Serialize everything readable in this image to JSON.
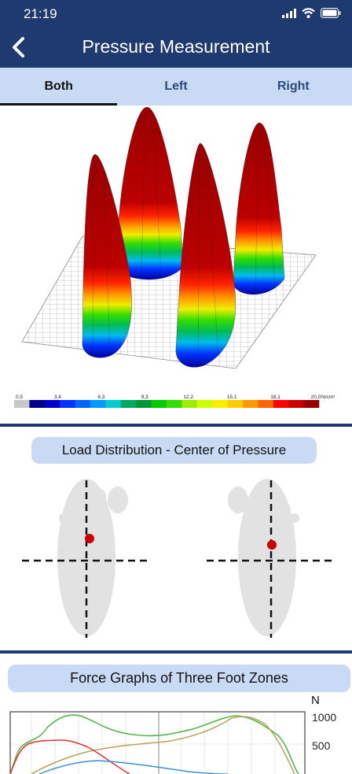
{
  "status": {
    "time": "21:19",
    "icons": [
      "signal-icon",
      "wifi-icon",
      "battery-icon"
    ]
  },
  "header": {
    "title": "Pressure Measurement",
    "back_icon": "chevron-left-icon"
  },
  "tabs": [
    {
      "label": "Both",
      "active": true
    },
    {
      "label": "Left",
      "active": false
    },
    {
      "label": "Right",
      "active": false
    }
  ],
  "pressure_scale": {
    "ticks": [
      "0,5",
      "3,4",
      "6,3",
      "9,3",
      "12,2",
      "15,1",
      "18,1",
      "20,0"
    ],
    "unit": "N/cm²",
    "colors": [
      "#c8c8c8",
      "#00008b",
      "#0000cd",
      "#0033ff",
      "#0066ff",
      "#0099ff",
      "#00cccc",
      "#00aa66",
      "#009933",
      "#00cc00",
      "#33dd00",
      "#99ee00",
      "#ccff00",
      "#ffee00",
      "#ffcc00",
      "#ff9900",
      "#ff6600",
      "#ff0000",
      "#cc0000",
      "#990000"
    ]
  },
  "sections": {
    "load_distribution": "Load Distribution - Center of Pressure",
    "force_graphs": "Force Graphs of Three Foot Zones"
  },
  "force_graph": {
    "unit": "N",
    "ticks": [
      "1000",
      "500"
    ]
  },
  "colors": {
    "navy": "#1f3a6e",
    "light_blue": "#c9daf4",
    "cop_dot": "#cc0000"
  }
}
